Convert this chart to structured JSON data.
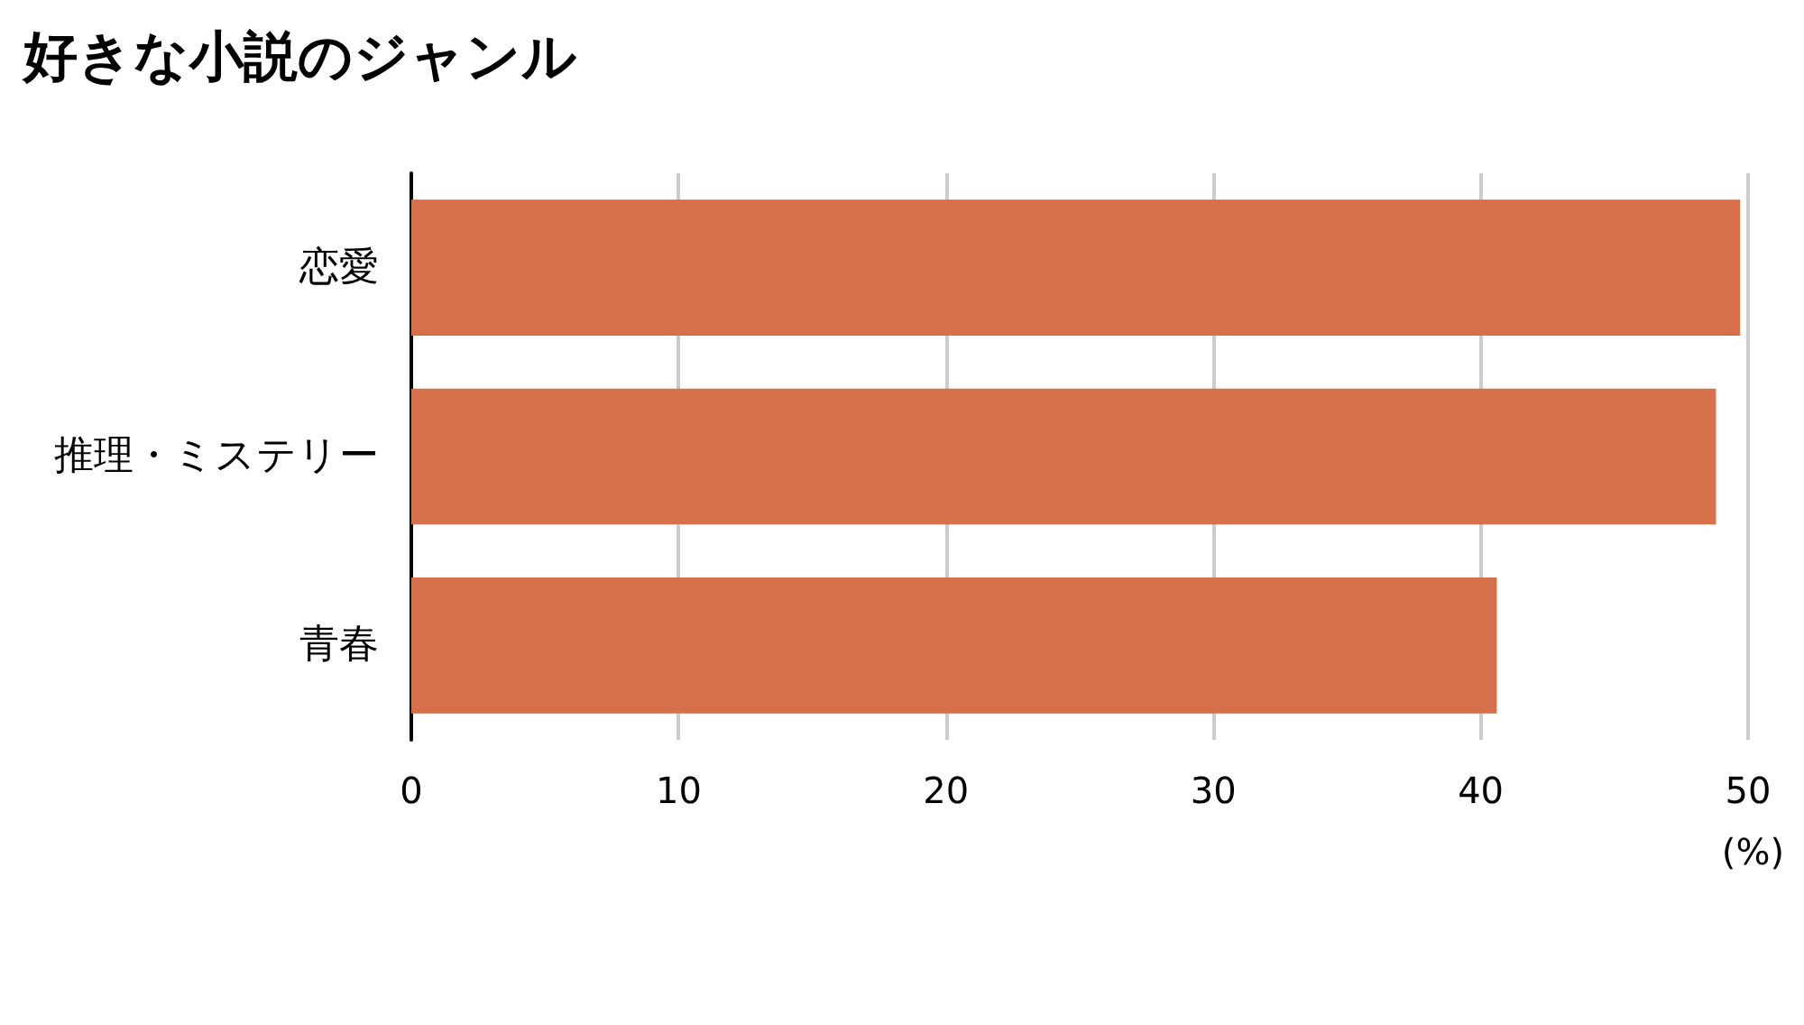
{
  "chart_data": {
    "type": "bar",
    "title": "好きな小説のジャンル",
    "orientation": "horizontal",
    "categories": [
      "恋愛",
      "推理・ミステリー",
      "青春"
    ],
    "values": [
      49.7,
      48.8,
      40.6
    ],
    "color": "#d6704b",
    "xlabel": "(%)",
    "xlim": [
      0,
      50
    ],
    "xticks": [
      0,
      10,
      20,
      30,
      40,
      50
    ],
    "grid": "x"
  }
}
